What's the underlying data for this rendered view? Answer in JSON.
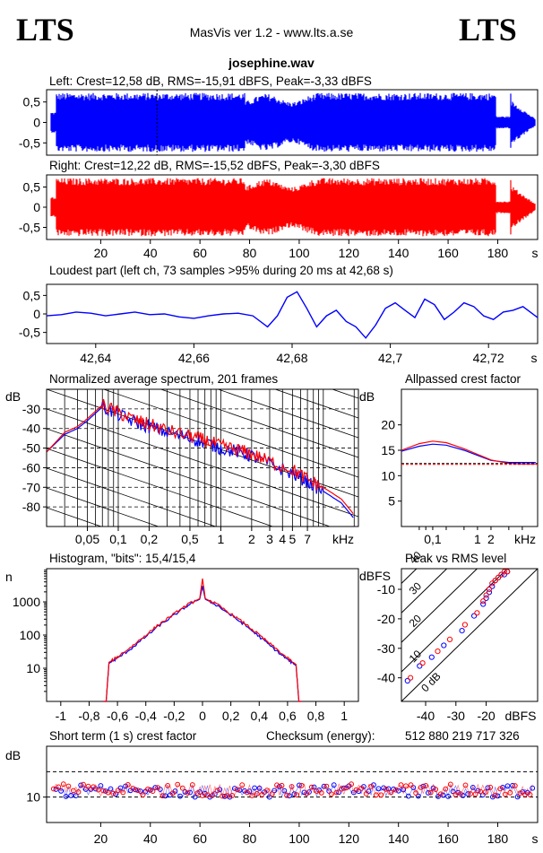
{
  "header": {
    "logo_left": "LTS",
    "logo_right": "LTS",
    "app_title": "MasVis ver 1.2 - www.lts.a.se",
    "file_name": "josephine.wav"
  },
  "colors": {
    "left_channel": "#0000ff",
    "right_channel": "#ff0000",
    "grid": "#000000",
    "background": "#ffffff"
  },
  "chart_data": [
    {
      "id": "left_waveform",
      "type": "line",
      "title": "Left: Crest=12,58 dB, RMS=-15,91 dBFS, Peak=-3,33 dBFS",
      "series": [
        {
          "name": "Left",
          "color": "#0000ff"
        }
      ],
      "crest_db": 12.58,
      "rms_dbfs": -15.91,
      "peak_dbfs": -3.33,
      "ylim": [
        -0.8,
        0.8
      ],
      "y_ticks": [
        "0,5",
        "0",
        "-0,5"
      ],
      "marker_x_s": 42.68
    },
    {
      "id": "right_waveform",
      "type": "line",
      "title": "Right: Crest=12,22 dB, RMS=-15,52 dBFS, Peak=-3,30 dBFS",
      "series": [
        {
          "name": "Right",
          "color": "#ff0000"
        }
      ],
      "crest_db": 12.22,
      "rms_dbfs": -15.52,
      "peak_dbfs": -3.3,
      "ylim": [
        -0.8,
        0.8
      ],
      "y_ticks": [
        "0,5",
        "0",
        "-0,5"
      ],
      "xlim": [
        0,
        195
      ],
      "x_ticks": [
        "20",
        "40",
        "60",
        "80",
        "100",
        "120",
        "140",
        "160",
        "180"
      ],
      "x_unit": "s"
    },
    {
      "id": "loudest_part",
      "type": "line",
      "title": "Loudest part (left  ch, 73 samples >95% during 20 ms at 42,68 s)",
      "ylim": [
        -0.8,
        0.8
      ],
      "y_ticks": [
        "0,5",
        "0",
        "-0,5"
      ],
      "xlim": [
        42.63,
        42.73
      ],
      "x_ticks": [
        "42,64",
        "42,66",
        "42,68",
        "42,7",
        "42,72"
      ],
      "x_unit": "s",
      "x": [
        42.63,
        42.633,
        42.636,
        42.639,
        42.642,
        42.645,
        42.648,
        42.651,
        42.654,
        42.657,
        42.66,
        42.663,
        42.666,
        42.669,
        42.672,
        42.675,
        42.677,
        42.679,
        42.681,
        42.683,
        42.685,
        42.687,
        42.689,
        42.691,
        42.693,
        42.695,
        42.697,
        42.699,
        42.701,
        42.703,
        42.705,
        42.707,
        42.709,
        42.711,
        42.713,
        42.715,
        42.717,
        42.719,
        42.721,
        42.723,
        42.725,
        42.727,
        42.73
      ],
      "y": [
        -0.05,
        -0.02,
        0.05,
        0.02,
        -0.05,
        0.0,
        0.05,
        -0.02,
        0.0,
        -0.08,
        -0.12,
        -0.05,
        0.0,
        0.02,
        -0.05,
        -0.35,
        -0.05,
        0.45,
        0.6,
        0.15,
        -0.35,
        -0.05,
        0.1,
        -0.2,
        -0.35,
        -0.65,
        -0.3,
        0.15,
        0.3,
        0.1,
        -0.1,
        0.4,
        0.25,
        -0.15,
        0.05,
        0.3,
        0.2,
        -0.05,
        -0.15,
        0.05,
        0.1,
        0.2,
        -0.1
      ]
    },
    {
      "id": "avg_spectrum",
      "type": "line",
      "title": "Normalized average spectrum, 201 frames",
      "ylabel": "dB",
      "y_ticks": [
        "-30",
        "-40",
        "-50",
        "-60",
        "-70",
        "-80"
      ],
      "ylim": [
        -90,
        -20
      ],
      "x_scale": "log",
      "xlim_khz": [
        0.02,
        22
      ],
      "x_ticks": [
        "0,05",
        "0,1",
        "0,2",
        "0,5",
        "1",
        "2",
        "3",
        "4",
        "5",
        "7"
      ],
      "x_unit": "kHz",
      "x_khz": [
        0.02,
        0.03,
        0.04,
        0.05,
        0.07,
        0.1,
        0.15,
        0.2,
        0.3,
        0.5,
        0.7,
        1,
        1.5,
        2,
        3,
        5,
        7,
        10,
        15,
        20
      ],
      "series": [
        {
          "name": "Left",
          "color": "#0000ff",
          "values": [
            -52,
            -43,
            -40,
            -36,
            -29,
            -33,
            -37,
            -39,
            -42,
            -45,
            -47,
            -50,
            -52,
            -54,
            -58,
            -63,
            -67,
            -72,
            -78,
            -86
          ]
        },
        {
          "name": "Right",
          "color": "#ff0000",
          "values": [
            -52,
            -42,
            -39,
            -35,
            -28,
            -32,
            -36,
            -38,
            -41,
            -44,
            -46,
            -49,
            -51,
            -53,
            -57,
            -61,
            -66,
            -70,
            -76,
            -84
          ]
        }
      ]
    },
    {
      "id": "allpassed_crest",
      "type": "line",
      "title": "Allpassed crest factor",
      "ylabel": "dB",
      "y_ticks": [
        "20",
        "15",
        "10",
        "5"
      ],
      "ylim": [
        0,
        27
      ],
      "x_scale": "log",
      "x_ticks": [
        "0,1",
        "1",
        "2"
      ],
      "x_unit": "kHz",
      "x_khz": [
        0.02,
        0.05,
        0.1,
        0.2,
        0.5,
        1,
        2,
        5,
        10,
        20
      ],
      "series": [
        {
          "name": "Left",
          "color": "#0000ff",
          "values": [
            14.8,
            15.8,
            16.2,
            16.0,
            15.0,
            14.0,
            13.0,
            12.6,
            12.6,
            12.6
          ]
        },
        {
          "name": "Right",
          "color": "#ff0000",
          "values": [
            15.0,
            16.3,
            16.8,
            16.5,
            15.3,
            14.2,
            13.1,
            12.4,
            12.3,
            12.3
          ]
        }
      ],
      "reference_level_db": 12.4
    },
    {
      "id": "histogram",
      "type": "line",
      "title": "Histogram, \"bits\": 15,4/15,4",
      "ylabel": "n",
      "y_scale": "log",
      "y_ticks": [
        "1000",
        "100",
        "10"
      ],
      "xlim": [
        -1.1,
        1.1
      ],
      "x_ticks": [
        "-1",
        "-0,8",
        "-0,6",
        "-0,4",
        "-0,2",
        "0",
        "0,2",
        "0,4",
        "0,6",
        "0,8",
        "1"
      ],
      "x": [
        -0.7,
        -0.68,
        -0.66,
        -0.6,
        -0.5,
        -0.4,
        -0.3,
        -0.2,
        -0.1,
        -0.02,
        0,
        0.02,
        0.1,
        0.2,
        0.3,
        0.4,
        0.5,
        0.6,
        0.66,
        0.68,
        0.7
      ],
      "series": [
        {
          "name": "Left",
          "color": "#0000ff",
          "values": [
            1,
            1,
            14,
            20,
            40,
            90,
            200,
            400,
            800,
            1200,
            3000,
            1200,
            800,
            400,
            200,
            90,
            40,
            18,
            12,
            1,
            1
          ]
        },
        {
          "name": "Right",
          "color": "#ff0000",
          "values": [
            1,
            1,
            15,
            22,
            45,
            100,
            220,
            430,
            850,
            1250,
            5000,
            1250,
            850,
            430,
            220,
            100,
            45,
            20,
            13,
            1,
            1
          ]
        }
      ]
    },
    {
      "id": "peak_vs_rms",
      "type": "scatter",
      "title": "Peak vs RMS level",
      "ylabel": "dBFS",
      "xlabel": "dBFS",
      "ylim": [
        -48,
        -3
      ],
      "xlim": [
        -48,
        -3
      ],
      "y_ticks": [
        "-10",
        "-20",
        "-30",
        "-40"
      ],
      "x_ticks": [
        "-40",
        "-30",
        "-20"
      ],
      "diagonal_labels": [
        "40",
        "30",
        "20",
        "10",
        "0 dB"
      ],
      "series": [
        {
          "name": "Left",
          "color": "#0000ff",
          "points": [
            [
              -46,
              -41
            ],
            [
              -42,
              -36
            ],
            [
              -38,
              -33
            ],
            [
              -34,
              -29
            ],
            [
              -28,
              -24
            ],
            [
              -24,
              -19
            ],
            [
              -21,
              -15
            ],
            [
              -20,
              -13
            ],
            [
              -19,
              -11
            ],
            [
              -18,
              -9
            ],
            [
              -17,
              -7
            ],
            [
              -16,
              -6
            ],
            [
              -15,
              -5
            ],
            [
              -14,
              -5
            ],
            [
              -13,
              -4
            ]
          ]
        },
        {
          "name": "Right",
          "color": "#ff0000",
          "points": [
            [
              -45,
              -40
            ],
            [
              -41,
              -35
            ],
            [
              -36,
              -31
            ],
            [
              -32,
              -27
            ],
            [
              -27,
              -22
            ],
            [
              -23,
              -18
            ],
            [
              -21,
              -14
            ],
            [
              -20,
              -12
            ],
            [
              -19,
              -10
            ],
            [
              -18,
              -8
            ],
            [
              -17,
              -7
            ],
            [
              -16,
              -6
            ],
            [
              -15,
              -5
            ],
            [
              -14,
              -4
            ],
            [
              -13,
              -4
            ]
          ]
        }
      ]
    },
    {
      "id": "short_term_crest",
      "type": "scatter",
      "title": "Short term (1 s) crest factor",
      "checksum_label": "Checksum (energy):",
      "checksum_value": "512 880 219 717 326",
      "ylabel": "dB",
      "y_ticks": [
        "10"
      ],
      "ylim": [
        5,
        20
      ],
      "xlim": [
        0,
        195
      ],
      "x_ticks": [
        "20",
        "40",
        "60",
        "80",
        "100",
        "120",
        "140",
        "160",
        "180"
      ],
      "x_unit": "s",
      "series": [
        {
          "name": "Left",
          "color": "#0000ff"
        },
        {
          "name": "Right",
          "color": "#ff0000"
        }
      ]
    }
  ]
}
